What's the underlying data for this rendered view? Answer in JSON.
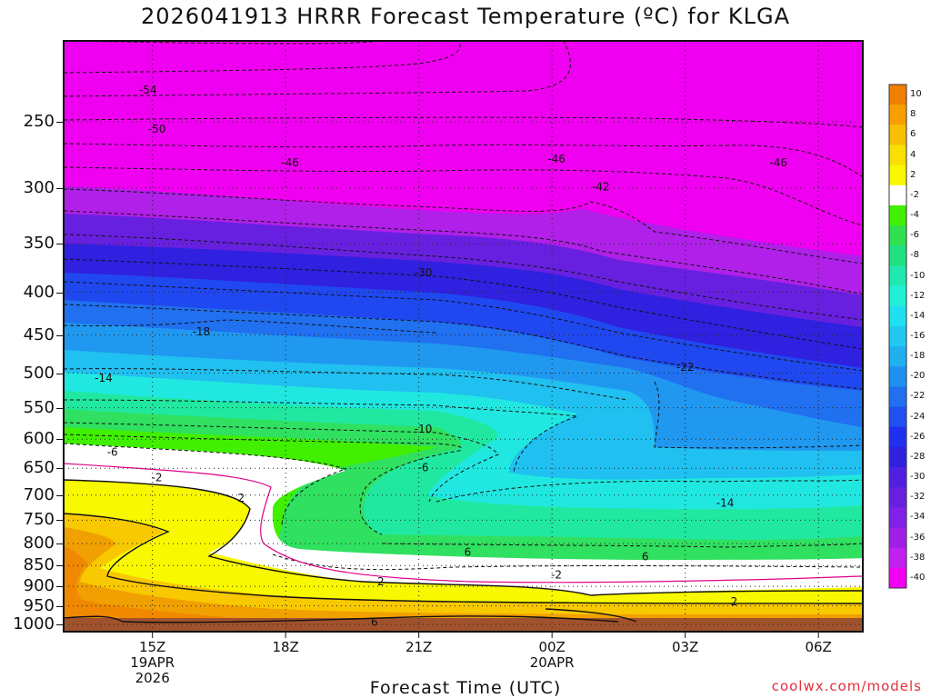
{
  "title": "2026041913 HRRR Forecast Temperature (ºC) for KLGA",
  "xaxis_title": "Forecast Time (UTC)",
  "credit": "coolwx.com/models",
  "chart_data": {
    "type": "heatmap",
    "title": "2026041913 HRRR Forecast Temperature (ºC) for KLGA",
    "xlabel": "Forecast Time (UTC)",
    "ylabel": "",
    "y_scale": "log-pressure",
    "y_reversed": true,
    "y_ticks": [
      250,
      300,
      350,
      400,
      450,
      500,
      550,
      600,
      650,
      700,
      750,
      800,
      850,
      900,
      950,
      1000
    ],
    "x_ticks": [
      {
        "hour": 15,
        "label": "15Z",
        "sub": [
          "19APR",
          "2026"
        ]
      },
      {
        "hour": 18,
        "label": "18Z",
        "sub": []
      },
      {
        "hour": 21,
        "label": "21Z",
        "sub": []
      },
      {
        "hour": 24,
        "label": "00Z",
        "sub": [
          "20APR"
        ]
      },
      {
        "hour": 27,
        "label": "03Z",
        "sub": []
      },
      {
        "hour": 30,
        "label": "06Z",
        "sub": []
      }
    ],
    "xlim_hours": [
      13,
      31
    ],
    "ylim_hpa": [
      200,
      1020
    ],
    "colorbar": {
      "labels": [
        "10",
        "8",
        "6",
        "4",
        "2",
        "-2",
        "-4",
        "-6",
        "-8",
        "-10",
        "-12",
        "-14",
        "-16",
        "-18",
        "-20",
        "-22",
        "-24",
        "-26",
        "-28",
        "-30",
        "-32",
        "-34",
        "-36",
        "-38",
        "-40"
      ],
      "colors": [
        "#f08000",
        "#f8a000",
        "#f8c000",
        "#f8e000",
        "#f8f800",
        "#ffffff",
        "#40f000",
        "#30e050",
        "#20e080",
        "#20e8b0",
        "#20f0d8",
        "#20e0f0",
        "#20c8f0",
        "#20b0f0",
        "#2090f0",
        "#2070f0",
        "#2050f0",
        "#2030f0",
        "#3020e0",
        "#5020e0",
        "#6820e0",
        "#8020e8",
        "#a020e8",
        "#c020f0",
        "#f000f0"
      ]
    },
    "contours": [
      {
        "label": "-54",
        "x": 14.9,
        "p": 229
      },
      {
        "label": "-50",
        "x": 15.1,
        "p": 255
      },
      {
        "label": "-46",
        "x": 18.1,
        "p": 280
      },
      {
        "label": "-46",
        "x": 24.1,
        "p": 277
      },
      {
        "label": "-46",
        "x": 29.1,
        "p": 280
      },
      {
        "label": "-42",
        "x": 25.1,
        "p": 299
      },
      {
        "label": "-30",
        "x": 21.1,
        "p": 379
      },
      {
        "label": "-22",
        "x": 27.0,
        "p": 492
      },
      {
        "label": "-18",
        "x": 16.1,
        "p": 446
      },
      {
        "label": "-14",
        "x": 13.9,
        "p": 507
      },
      {
        "label": "-14",
        "x": 27.9,
        "p": 715
      },
      {
        "label": "-10",
        "x": 21.1,
        "p": 583
      },
      {
        "label": "-6",
        "x": 14.1,
        "p": 622
      },
      {
        "label": "-6",
        "x": 21.1,
        "p": 649
      },
      {
        "label": "-2",
        "x": 15.1,
        "p": 667
      },
      {
        "label": "2",
        "x": 17.0,
        "p": 706
      },
      {
        "label": "6",
        "x": 22.1,
        "p": 819
      },
      {
        "label": "6",
        "x": 26.1,
        "p": 829
      },
      {
        "label": "-2",
        "x": 20.1,
        "p": 889
      },
      {
        "label": "-2",
        "x": 24.1,
        "p": 872
      },
      {
        "label": "2",
        "x": 28.1,
        "p": 939
      },
      {
        "label": "6",
        "x": 20.0,
        "p": 993
      }
    ]
  }
}
